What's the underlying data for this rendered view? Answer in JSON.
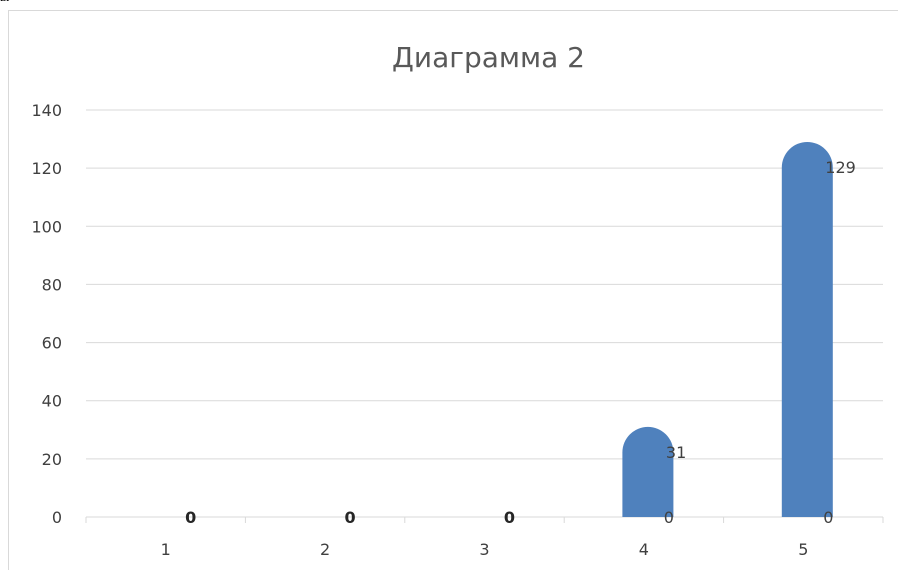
{
  "page": {
    "top_fragment": "ы"
  },
  "chart_data": {
    "type": "bar",
    "title": "Диаграмма 2",
    "xlabel": "",
    "ylabel": "",
    "categories": [
      "1",
      "2",
      "3",
      "4",
      "5"
    ],
    "series": [
      {
        "values": [
          0,
          0,
          0,
          31,
          129
        ],
        "labels": [
          "",
          "",
          "",
          "31",
          "129"
        ]
      },
      {
        "values": [
          0,
          0,
          0,
          0,
          0
        ],
        "labels": [
          "0",
          "0",
          "0",
          "0",
          "0"
        ]
      }
    ],
    "ylim": [
      0,
      140
    ],
    "yticks": [
      0,
      20,
      40,
      60,
      80,
      100,
      120,
      140
    ],
    "grid": true,
    "legend": "none",
    "bar_shape": "rounded-top",
    "colors": {
      "bar": "#4f81bd",
      "grid": "#d9d9d9",
      "axis_text": "#404040",
      "title": "#595959"
    }
  }
}
